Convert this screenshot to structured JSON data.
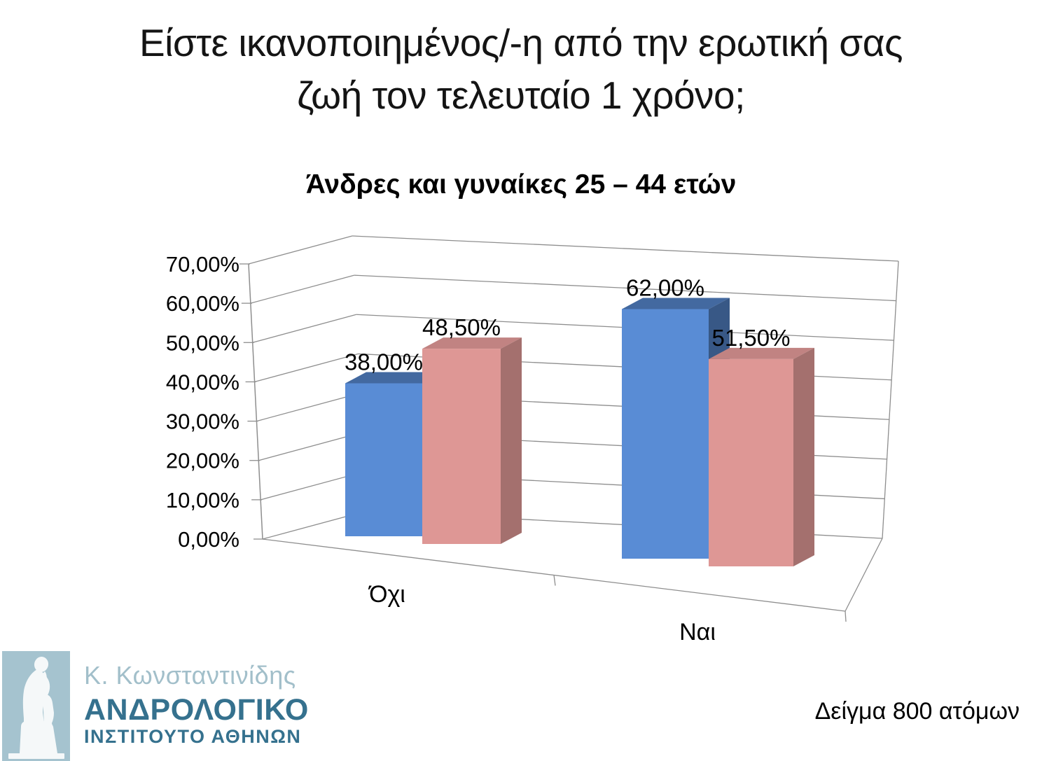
{
  "slide": {
    "title_lines": [
      "Είστε ικανοποιημένος/-η από την ερωτική σας",
      "ζωή τον τελευταίο 1 χρόνο;"
    ],
    "chart_title": "Άνδρες και γυναίκες 25 – 44 ετών",
    "sample_note": "Δείγμα 800 ατόμων"
  },
  "logo": {
    "person": "Κ. Κωνσταντινίδης",
    "org_line1": "ΑΝΔΡΟΛΟΓΙΚΟ",
    "org_line2": "ΙΝΣΤΙΤΟΥΤΟ ΑΘΗΝΩΝ",
    "square_color": "#a5c3cf",
    "statue_color": "#f5f8f9",
    "person_color": "#a2bfca",
    "org_color": "#35718e"
  },
  "chart_data": {
    "type": "bar",
    "style": "3d-clustered-column",
    "title": "Άνδρες και γυναίκες 25 – 44 ετών",
    "categories": [
      "Όχι",
      "Ναι"
    ],
    "series": [
      {
        "color": "#598cd5",
        "values": [
          38.0,
          62.0
        ],
        "value_labels": [
          "38,00%",
          "62,00%"
        ]
      },
      {
        "color": "#de9795",
        "values": [
          48.5,
          51.5
        ],
        "value_labels": [
          "48,50%",
          "51,50%"
        ]
      }
    ],
    "value_axis": {
      "min": 0,
      "max": 70,
      "step": 10,
      "tick_labels": [
        "0,00%",
        "10,00%",
        "20,00%",
        "30,00%",
        "40,00%",
        "50,00%",
        "60,00%",
        "70,00%"
      ]
    },
    "legend": "none",
    "gridlines": true,
    "text_color": "#000000",
    "line_color": "#8e8e8e"
  }
}
